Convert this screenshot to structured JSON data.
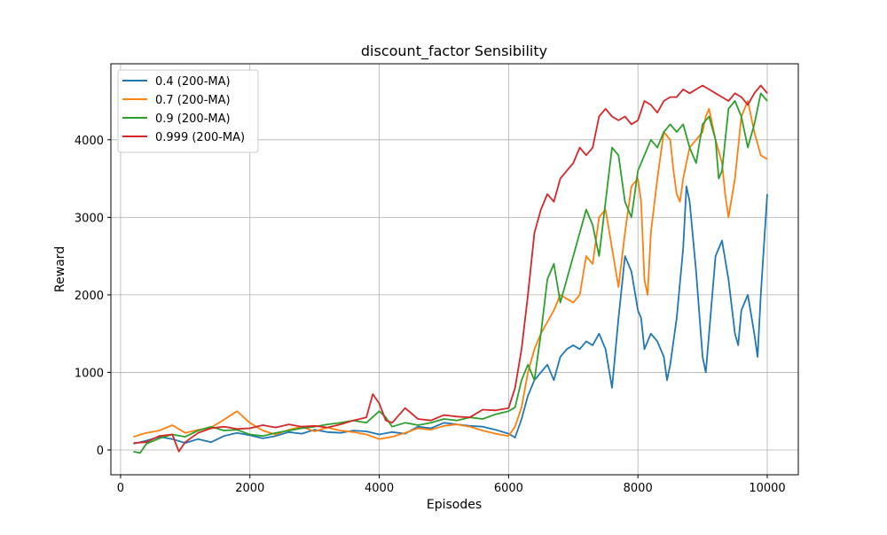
{
  "chart_data": {
    "type": "line",
    "title": "discount_factor Sensibility",
    "xlabel": "Episodes",
    "ylabel": "Reward",
    "xlim": [
      -150,
      10480
    ],
    "ylim": [
      -320,
      4980
    ],
    "xticks": [
      0,
      2000,
      4000,
      6000,
      8000,
      10000
    ],
    "yticks": [
      0,
      1000,
      2000,
      3000,
      4000
    ],
    "grid": true,
    "legend_position": "upper left",
    "series": [
      {
        "name": "0.4 (200-MA)",
        "color": "#1f77b4",
        "points": [
          [
            200,
            80
          ],
          [
            400,
            120
          ],
          [
            600,
            170
          ],
          [
            800,
            140
          ],
          [
            1000,
            90
          ],
          [
            1200,
            140
          ],
          [
            1400,
            100
          ],
          [
            1600,
            180
          ],
          [
            1800,
            220
          ],
          [
            2000,
            190
          ],
          [
            2200,
            150
          ],
          [
            2400,
            180
          ],
          [
            2600,
            230
          ],
          [
            2800,
            210
          ],
          [
            3000,
            260
          ],
          [
            3200,
            230
          ],
          [
            3400,
            220
          ],
          [
            3600,
            250
          ],
          [
            3800,
            240
          ],
          [
            4000,
            200
          ],
          [
            4200,
            230
          ],
          [
            4400,
            210
          ],
          [
            4600,
            300
          ],
          [
            4800,
            280
          ],
          [
            5000,
            350
          ],
          [
            5200,
            330
          ],
          [
            5400,
            310
          ],
          [
            5600,
            300
          ],
          [
            5800,
            260
          ],
          [
            6000,
            210
          ],
          [
            6100,
            160
          ],
          [
            6200,
            400
          ],
          [
            6300,
            700
          ],
          [
            6400,
            900
          ],
          [
            6500,
            1000
          ],
          [
            6600,
            1100
          ],
          [
            6700,
            900
          ],
          [
            6800,
            1200
          ],
          [
            6900,
            1300
          ],
          [
            7000,
            1350
          ],
          [
            7100,
            1300
          ],
          [
            7200,
            1400
          ],
          [
            7300,
            1350
          ],
          [
            7400,
            1500
          ],
          [
            7500,
            1300
          ],
          [
            7600,
            800
          ],
          [
            7700,
            1700
          ],
          [
            7800,
            2500
          ],
          [
            7900,
            2300
          ],
          [
            8000,
            1800
          ],
          [
            8050,
            1700
          ],
          [
            8100,
            1300
          ],
          [
            8200,
            1500
          ],
          [
            8300,
            1400
          ],
          [
            8400,
            1200
          ],
          [
            8450,
            900
          ],
          [
            8500,
            1100
          ],
          [
            8600,
            1700
          ],
          [
            8700,
            2600
          ],
          [
            8750,
            3400
          ],
          [
            8800,
            3200
          ],
          [
            8900,
            2300
          ],
          [
            9000,
            1200
          ],
          [
            9050,
            1000
          ],
          [
            9100,
            1500
          ],
          [
            9200,
            2500
          ],
          [
            9300,
            2700
          ],
          [
            9400,
            2200
          ],
          [
            9500,
            1500
          ],
          [
            9550,
            1350
          ],
          [
            9600,
            1800
          ],
          [
            9700,
            2000
          ],
          [
            9800,
            1500
          ],
          [
            9850,
            1200
          ],
          [
            9900,
            2000
          ],
          [
            10000,
            3300
          ]
        ]
      },
      {
        "name": "0.7 (200-MA)",
        "color": "#ff7f0e",
        "points": [
          [
            200,
            170
          ],
          [
            400,
            220
          ],
          [
            600,
            250
          ],
          [
            800,
            320
          ],
          [
            1000,
            220
          ],
          [
            1200,
            260
          ],
          [
            1400,
            290
          ],
          [
            1600,
            390
          ],
          [
            1800,
            500
          ],
          [
            2000,
            350
          ],
          [
            2200,
            250
          ],
          [
            2400,
            200
          ],
          [
            2600,
            260
          ],
          [
            2800,
            300
          ],
          [
            3000,
            240
          ],
          [
            3200,
            290
          ],
          [
            3400,
            250
          ],
          [
            3600,
            230
          ],
          [
            3800,
            200
          ],
          [
            4000,
            140
          ],
          [
            4200,
            170
          ],
          [
            4400,
            220
          ],
          [
            4600,
            280
          ],
          [
            4800,
            260
          ],
          [
            5000,
            310
          ],
          [
            5200,
            330
          ],
          [
            5400,
            300
          ],
          [
            5600,
            250
          ],
          [
            5800,
            210
          ],
          [
            6000,
            180
          ],
          [
            6100,
            300
          ],
          [
            6200,
            550
          ],
          [
            6300,
            1000
          ],
          [
            6400,
            1300
          ],
          [
            6500,
            1500
          ],
          [
            6600,
            1650
          ],
          [
            6700,
            1800
          ],
          [
            6800,
            2000
          ],
          [
            6900,
            1950
          ],
          [
            7000,
            1900
          ],
          [
            7100,
            2000
          ],
          [
            7200,
            2500
          ],
          [
            7300,
            2400
          ],
          [
            7400,
            3000
          ],
          [
            7500,
            3100
          ],
          [
            7600,
            2600
          ],
          [
            7700,
            2100
          ],
          [
            7800,
            2800
          ],
          [
            7900,
            3400
          ],
          [
            8000,
            3500
          ],
          [
            8050,
            3200
          ],
          [
            8100,
            2200
          ],
          [
            8150,
            2000
          ],
          [
            8200,
            2800
          ],
          [
            8300,
            3500
          ],
          [
            8400,
            4100
          ],
          [
            8500,
            4000
          ],
          [
            8550,
            3600
          ],
          [
            8600,
            3300
          ],
          [
            8650,
            3200
          ],
          [
            8700,
            3500
          ],
          [
            8800,
            3900
          ],
          [
            8900,
            4000
          ],
          [
            9000,
            4100
          ],
          [
            9050,
            4300
          ],
          [
            9100,
            4400
          ],
          [
            9200,
            4000
          ],
          [
            9300,
            3700
          ],
          [
            9350,
            3300
          ],
          [
            9400,
            3000
          ],
          [
            9500,
            3500
          ],
          [
            9600,
            4300
          ],
          [
            9700,
            4500
          ],
          [
            9800,
            4100
          ],
          [
            9900,
            3800
          ],
          [
            10000,
            3750
          ]
        ]
      },
      {
        "name": "0.9 (200-MA)",
        "color": "#2ca02c",
        "points": [
          [
            200,
            -20
          ],
          [
            300,
            -40
          ],
          [
            400,
            80
          ],
          [
            600,
            150
          ],
          [
            800,
            200
          ],
          [
            1000,
            170
          ],
          [
            1200,
            250
          ],
          [
            1400,
            300
          ],
          [
            1600,
            250
          ],
          [
            1800,
            260
          ],
          [
            2000,
            200
          ],
          [
            2200,
            180
          ],
          [
            2400,
            220
          ],
          [
            2600,
            250
          ],
          [
            2800,
            280
          ],
          [
            3000,
            300
          ],
          [
            3200,
            330
          ],
          [
            3400,
            350
          ],
          [
            3600,
            380
          ],
          [
            3800,
            350
          ],
          [
            4000,
            500
          ],
          [
            4100,
            420
          ],
          [
            4200,
            300
          ],
          [
            4400,
            350
          ],
          [
            4600,
            320
          ],
          [
            4800,
            350
          ],
          [
            5000,
            400
          ],
          [
            5200,
            380
          ],
          [
            5400,
            420
          ],
          [
            5600,
            400
          ],
          [
            5800,
            460
          ],
          [
            6000,
            500
          ],
          [
            6100,
            550
          ],
          [
            6200,
            900
          ],
          [
            6300,
            1100
          ],
          [
            6400,
            900
          ],
          [
            6500,
            1500
          ],
          [
            6600,
            2200
          ],
          [
            6700,
            2400
          ],
          [
            6800,
            1900
          ],
          [
            6900,
            2200
          ],
          [
            7000,
            2500
          ],
          [
            7100,
            2800
          ],
          [
            7200,
            3100
          ],
          [
            7300,
            2900
          ],
          [
            7400,
            2500
          ],
          [
            7500,
            3200
          ],
          [
            7600,
            3900
          ],
          [
            7700,
            3800
          ],
          [
            7800,
            3200
          ],
          [
            7900,
            3000
          ],
          [
            8000,
            3600
          ],
          [
            8100,
            3800
          ],
          [
            8200,
            4000
          ],
          [
            8300,
            3900
          ],
          [
            8400,
            4100
          ],
          [
            8500,
            4200
          ],
          [
            8600,
            4100
          ],
          [
            8700,
            4200
          ],
          [
            8800,
            3900
          ],
          [
            8900,
            3700
          ],
          [
            9000,
            4200
          ],
          [
            9100,
            4300
          ],
          [
            9200,
            4000
          ],
          [
            9250,
            3500
          ],
          [
            9300,
            3600
          ],
          [
            9400,
            4400
          ],
          [
            9500,
            4500
          ],
          [
            9600,
            4300
          ],
          [
            9700,
            3900
          ],
          [
            9800,
            4200
          ],
          [
            9900,
            4600
          ],
          [
            10000,
            4500
          ]
        ]
      },
      {
        "name": "0.999 (200-MA)",
        "color": "#d62728",
        "points": [
          [
            200,
            90
          ],
          [
            400,
            100
          ],
          [
            600,
            180
          ],
          [
            800,
            200
          ],
          [
            900,
            -20
          ],
          [
            1000,
            100
          ],
          [
            1200,
            220
          ],
          [
            1400,
            280
          ],
          [
            1600,
            300
          ],
          [
            1800,
            270
          ],
          [
            2000,
            280
          ],
          [
            2200,
            320
          ],
          [
            2400,
            290
          ],
          [
            2600,
            330
          ],
          [
            2800,
            300
          ],
          [
            3000,
            310
          ],
          [
            3200,
            290
          ],
          [
            3400,
            330
          ],
          [
            3600,
            380
          ],
          [
            3800,
            420
          ],
          [
            3900,
            720
          ],
          [
            4000,
            600
          ],
          [
            4100,
            380
          ],
          [
            4200,
            350
          ],
          [
            4400,
            540
          ],
          [
            4600,
            400
          ],
          [
            4800,
            380
          ],
          [
            5000,
            450
          ],
          [
            5200,
            430
          ],
          [
            5400,
            420
          ],
          [
            5600,
            520
          ],
          [
            5800,
            510
          ],
          [
            6000,
            540
          ],
          [
            6100,
            800
          ],
          [
            6200,
            1300
          ],
          [
            6300,
            2000
          ],
          [
            6400,
            2800
          ],
          [
            6500,
            3100
          ],
          [
            6600,
            3300
          ],
          [
            6700,
            3200
          ],
          [
            6800,
            3500
          ],
          [
            6900,
            3600
          ],
          [
            7000,
            3700
          ],
          [
            7100,
            3900
          ],
          [
            7200,
            3800
          ],
          [
            7300,
            3900
          ],
          [
            7400,
            4300
          ],
          [
            7500,
            4400
          ],
          [
            7600,
            4300
          ],
          [
            7700,
            4250
          ],
          [
            7800,
            4300
          ],
          [
            7900,
            4200
          ],
          [
            8000,
            4250
          ],
          [
            8100,
            4500
          ],
          [
            8200,
            4450
          ],
          [
            8300,
            4350
          ],
          [
            8400,
            4500
          ],
          [
            8500,
            4550
          ],
          [
            8600,
            4550
          ],
          [
            8700,
            4650
          ],
          [
            8800,
            4600
          ],
          [
            8900,
            4650
          ],
          [
            9000,
            4700
          ],
          [
            9100,
            4650
          ],
          [
            9200,
            4600
          ],
          [
            9300,
            4550
          ],
          [
            9400,
            4500
          ],
          [
            9500,
            4600
          ],
          [
            9600,
            4550
          ],
          [
            9700,
            4450
          ],
          [
            9800,
            4600
          ],
          [
            9900,
            4700
          ],
          [
            10000,
            4600
          ]
        ]
      }
    ]
  }
}
